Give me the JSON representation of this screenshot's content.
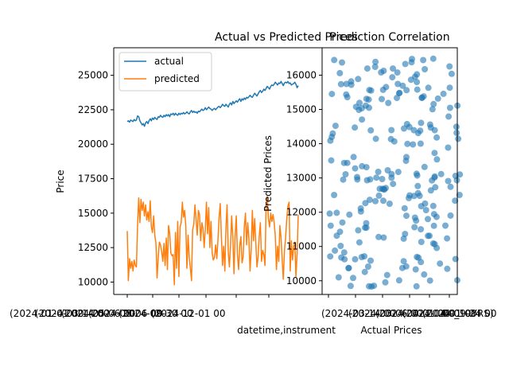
{
  "chart_data": [
    {
      "type": "line",
      "title": "Actual vs Predicted Prices",
      "xlabel": "datetime,instrument",
      "ylabel": "Price",
      "ylim": [
        9100,
        27000
      ],
      "yticks": [
        10000,
        12500,
        15000,
        17500,
        20000,
        22500,
        25000
      ],
      "xtick_labels": [
        "(2024-01-01 00",
        "(2024-03-14 00",
        "(2024-05-06 00",
        "(2024-08-06 00",
        "(2024-09-30 00",
        "(2024-12-01 00"
      ],
      "grid": false,
      "legend": "upper-left",
      "n_points": 150,
      "series": [
        {
          "name": "actual",
          "color": "#1f77b4",
          "values": [
            21650,
            21700,
            21600,
            21750,
            21700,
            21650,
            21800,
            21700,
            21750,
            22050,
            22000,
            21700,
            21550,
            21400,
            21500,
            21300,
            21550,
            21650,
            21500,
            21700,
            21850,
            21700,
            21900,
            21800,
            21950,
            21850,
            21800,
            22000,
            21950,
            22100,
            22000,
            21950,
            22100,
            22000,
            22150,
            22050,
            22150,
            22000,
            22200,
            22150,
            22250,
            22100,
            22250,
            22150,
            22100,
            22250,
            22150,
            22250,
            22200,
            22300,
            22200,
            22250,
            22350,
            22250,
            22200,
            22350,
            22450,
            22300,
            22400,
            22300,
            22350,
            22250,
            22400,
            22350,
            22450,
            22550,
            22450,
            22500,
            22650,
            22500,
            22600,
            22700,
            22600,
            22550,
            22450,
            22550,
            22600,
            22500,
            22600,
            22700,
            22750,
            22650,
            22750,
            22900,
            22800,
            22750,
            22900,
            22800,
            22700,
            22900,
            23000,
            22850,
            23100,
            22950,
            23050,
            23150,
            23050,
            23200,
            23300,
            23100,
            23300,
            23200,
            23350,
            23250,
            23400,
            23350,
            23450,
            23550,
            23450,
            23400,
            23550,
            23700,
            23600,
            23500,
            23650,
            23800,
            23900,
            23750,
            23850,
            24000,
            23900,
            24050,
            24200,
            24100,
            24000,
            24200,
            24300,
            24250,
            24350,
            24500,
            24400,
            24300,
            24450,
            24400,
            24550,
            24400,
            24250,
            24450,
            24500,
            24450,
            24550,
            24400,
            24450,
            24300,
            24350,
            24400,
            24500,
            24350,
            24100,
            24250
          ]
        },
        {
          "name": "predicted",
          "color": "#ff7f0e",
          "values": [
            13700,
            10100,
            11700,
            11000,
            11500,
            10800,
            11600,
            11200,
            11100,
            14200,
            16100,
            14300,
            16000,
            15200,
            15800,
            14800,
            15600,
            14500,
            15100,
            14400,
            15900,
            14000,
            13600,
            14800,
            13400,
            12800,
            10300,
            11800,
            12900,
            12700,
            12200,
            11500,
            12800,
            11200,
            13200,
            10900,
            14100,
            13500,
            12100,
            11900,
            12000,
            9800,
            13600,
            11000,
            14400,
            10400,
            14000,
            14300,
            15800,
            14700,
            15200,
            14100,
            11000,
            13400,
            11800,
            11000,
            10100,
            13800,
            14200,
            15600,
            14500,
            13400,
            15200,
            14900,
            13000,
            14300,
            13900,
            12500,
            13800,
            15800,
            13500,
            15400,
            12500,
            14400,
            12100,
            11600,
            11800,
            12700,
            11700,
            13000,
            14600,
            15700,
            13400,
            11200,
            12600,
            10800,
            13900,
            15600,
            12200,
            11100,
            12700,
            14800,
            13200,
            10600,
            13300,
            14800,
            12000,
            10900,
            12600,
            13300,
            11400,
            11800,
            14000,
            15000,
            12700,
            14300,
            13100,
            10800,
            12300,
            15200,
            13000,
            14600,
            12900,
            11100,
            11800,
            13300,
            14300,
            11500,
            12300,
            12000,
            11200,
            15700,
            16200,
            14600,
            14000,
            15000,
            14400,
            14900,
            14300,
            13400,
            10900,
            12600,
            11500,
            14100,
            13200,
            11600,
            10200,
            12300,
            13200,
            14600,
            15500,
            15800,
            10800,
            13000,
            11600,
            12600,
            12900,
            10400,
            12100,
            14900
          ]
        }
      ]
    },
    {
      "type": "scatter",
      "title": "Prediction Correlation",
      "xlabel": "Actual Prices",
      "ylabel": "Predicted Prices",
      "ylim": [
        9600,
        16800
      ],
      "yticks": [
        10000,
        11000,
        12000,
        13000,
        14000,
        15000,
        16000
      ],
      "xlim": [
        -0.05,
        1.05
      ],
      "xtick_labels": [
        "(2024-03-14 00",
        "(2024-03-06 00",
        "(2024-04-01 00",
        "(2024-04-01 00",
        "(2024-09-24 00",
        "00_10YRS)"
      ],
      "grid": false,
      "color": "#1f77b4",
      "n_points": 230
    }
  ]
}
